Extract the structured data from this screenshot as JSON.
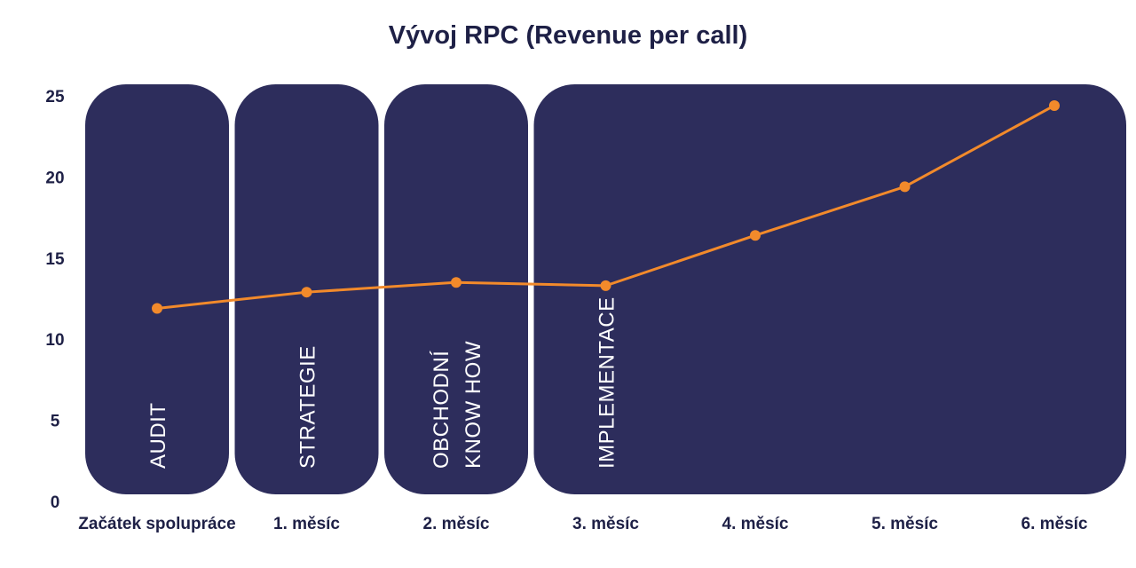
{
  "chart_data": {
    "type": "line",
    "title": "Vývoj RPC (Revenue per call)",
    "categories": [
      "Začátek spolupráce",
      "1. měsíc",
      "2. měsíc",
      "3. měsíc",
      "4. měsíc",
      "5. měsíc",
      "6. měsíc"
    ],
    "series": [
      {
        "values": [
          11.9,
          12.9,
          13.5,
          13.3,
          16.4,
          19.4,
          24.4
        ]
      }
    ],
    "ylim": [
      0,
      25
    ],
    "yticks": [
      0,
      5,
      10,
      15,
      20,
      25
    ],
    "grid": false,
    "phases": [
      {
        "lines": [
          "AUDIT"
        ],
        "from": 0,
        "to": 0
      },
      {
        "lines": [
          "STRATEGIE"
        ],
        "from": 1,
        "to": 1
      },
      {
        "lines": [
          "OBCHODNÍ",
          "KNOW HOW"
        ],
        "from": 2,
        "to": 2
      },
      {
        "lines": [
          "IMPLEMENTACE"
        ],
        "from": 3,
        "to": 6
      }
    ]
  },
  "colors": {
    "line": "#f28a2b",
    "phase_fill": "#2d2d5c",
    "text": "#1e2046"
  }
}
